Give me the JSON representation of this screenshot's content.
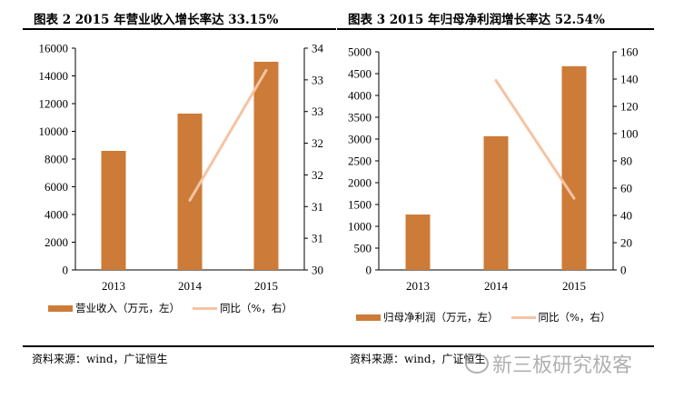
{
  "colors": {
    "bar": "#CD7B38",
    "line": "#F6C3A3",
    "axis": "#000000"
  },
  "footer": {
    "watermark": "新三板研究极客",
    "watermark_icon": "wechat-icon"
  },
  "chart_data": [
    {
      "type": "bar+line",
      "title": "图表 2 2015 年营业收入增长率达 33.15%",
      "categories": [
        "2013",
        "2014",
        "2015"
      ],
      "series": [
        {
          "name": "营业收入（万元，左）",
          "type": "bar",
          "axis": "left",
          "values": [
            8590,
            11280,
            15020
          ]
        },
        {
          "name": "同比（%，右）",
          "type": "line",
          "axis": "right",
          "values": [
            null,
            31.1,
            33.15
          ]
        }
      ],
      "left_axis": {
        "ylim": [
          0,
          16000
        ],
        "ticks": [
          "0",
          "2000",
          "4000",
          "6000",
          "8000",
          "10000",
          "12000",
          "14000",
          "16000"
        ]
      },
      "right_axis": {
        "ylim": [
          30,
          33.5
        ],
        "ticks": [
          "30",
          "31",
          "31",
          "32",
          "32",
          "33",
          "33",
          "34"
        ]
      },
      "legend": "bottom",
      "grid": false,
      "source": "资料来源：wind，广证恒生"
    },
    {
      "type": "bar+line",
      "title": "图表 3 2015 年归母净利润增长率达 52.54%",
      "categories": [
        "2013",
        "2014",
        "2015"
      ],
      "series": [
        {
          "name": "归母净利润（万元，左）",
          "type": "bar",
          "axis": "left",
          "values": [
            1270,
            3065,
            4670
          ]
        },
        {
          "name": "同比（%，右）",
          "type": "line",
          "axis": "right",
          "values": [
            null,
            139,
            52.54
          ]
        }
      ],
      "left_axis": {
        "ylim": [
          0,
          5000
        ],
        "ticks": [
          "0",
          "500",
          "1000",
          "1500",
          "2000",
          "2500",
          "3000",
          "3500",
          "4000",
          "4500",
          "5000"
        ]
      },
      "right_axis": {
        "ylim": [
          0,
          160
        ],
        "ticks": [
          "0",
          "20",
          "40",
          "60",
          "80",
          "100",
          "120",
          "140",
          "160"
        ]
      },
      "legend": "bottom",
      "grid": false,
      "source": "资料来源：wind，广证恒生"
    }
  ]
}
